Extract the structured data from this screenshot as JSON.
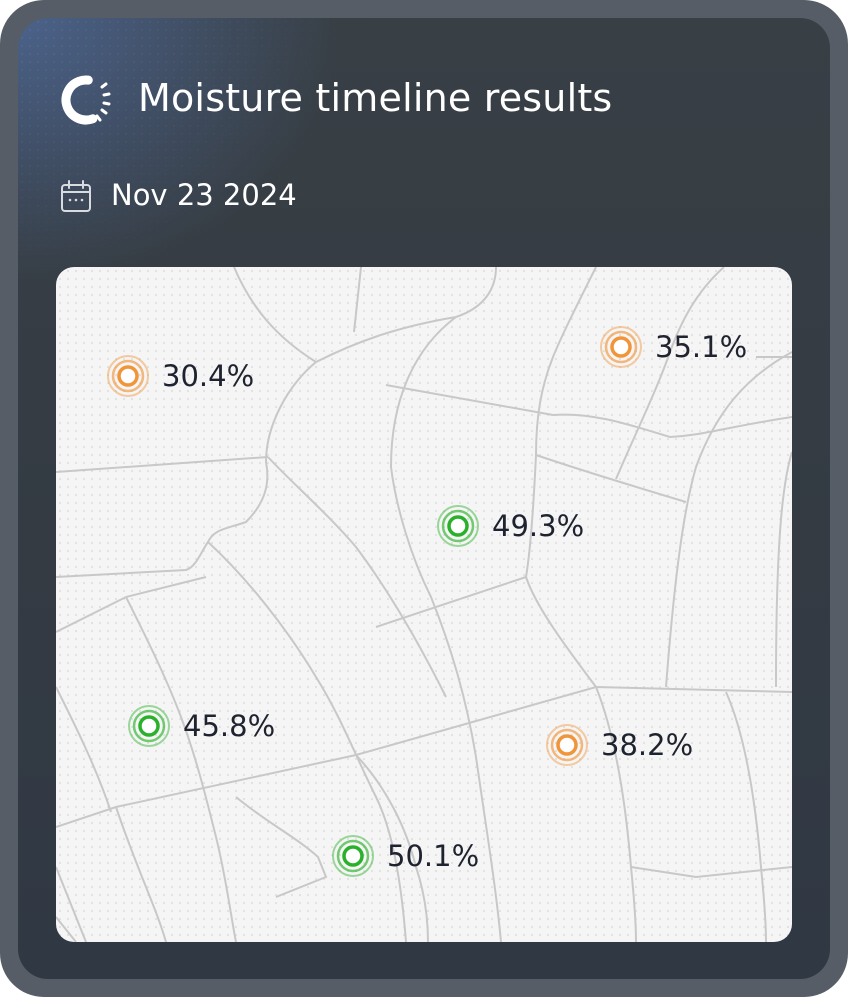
{
  "header": {
    "title": "Moisture timeline results",
    "date": "Nov 23 2024",
    "logo_icon": "loading-ring-logo-icon",
    "date_icon": "calendar-icon"
  },
  "colors": {
    "low": "#f0953a",
    "high": "#2bb02b",
    "road": "#c8c8c8"
  },
  "markers": [
    {
      "label": "30.4%",
      "level": "low"
    },
    {
      "label": "35.1%",
      "level": "low"
    },
    {
      "label": "49.3%",
      "level": "high"
    },
    {
      "label": "45.8%",
      "level": "high"
    },
    {
      "label": "38.2%",
      "level": "low"
    },
    {
      "label": "50.1%",
      "level": "high"
    }
  ]
}
